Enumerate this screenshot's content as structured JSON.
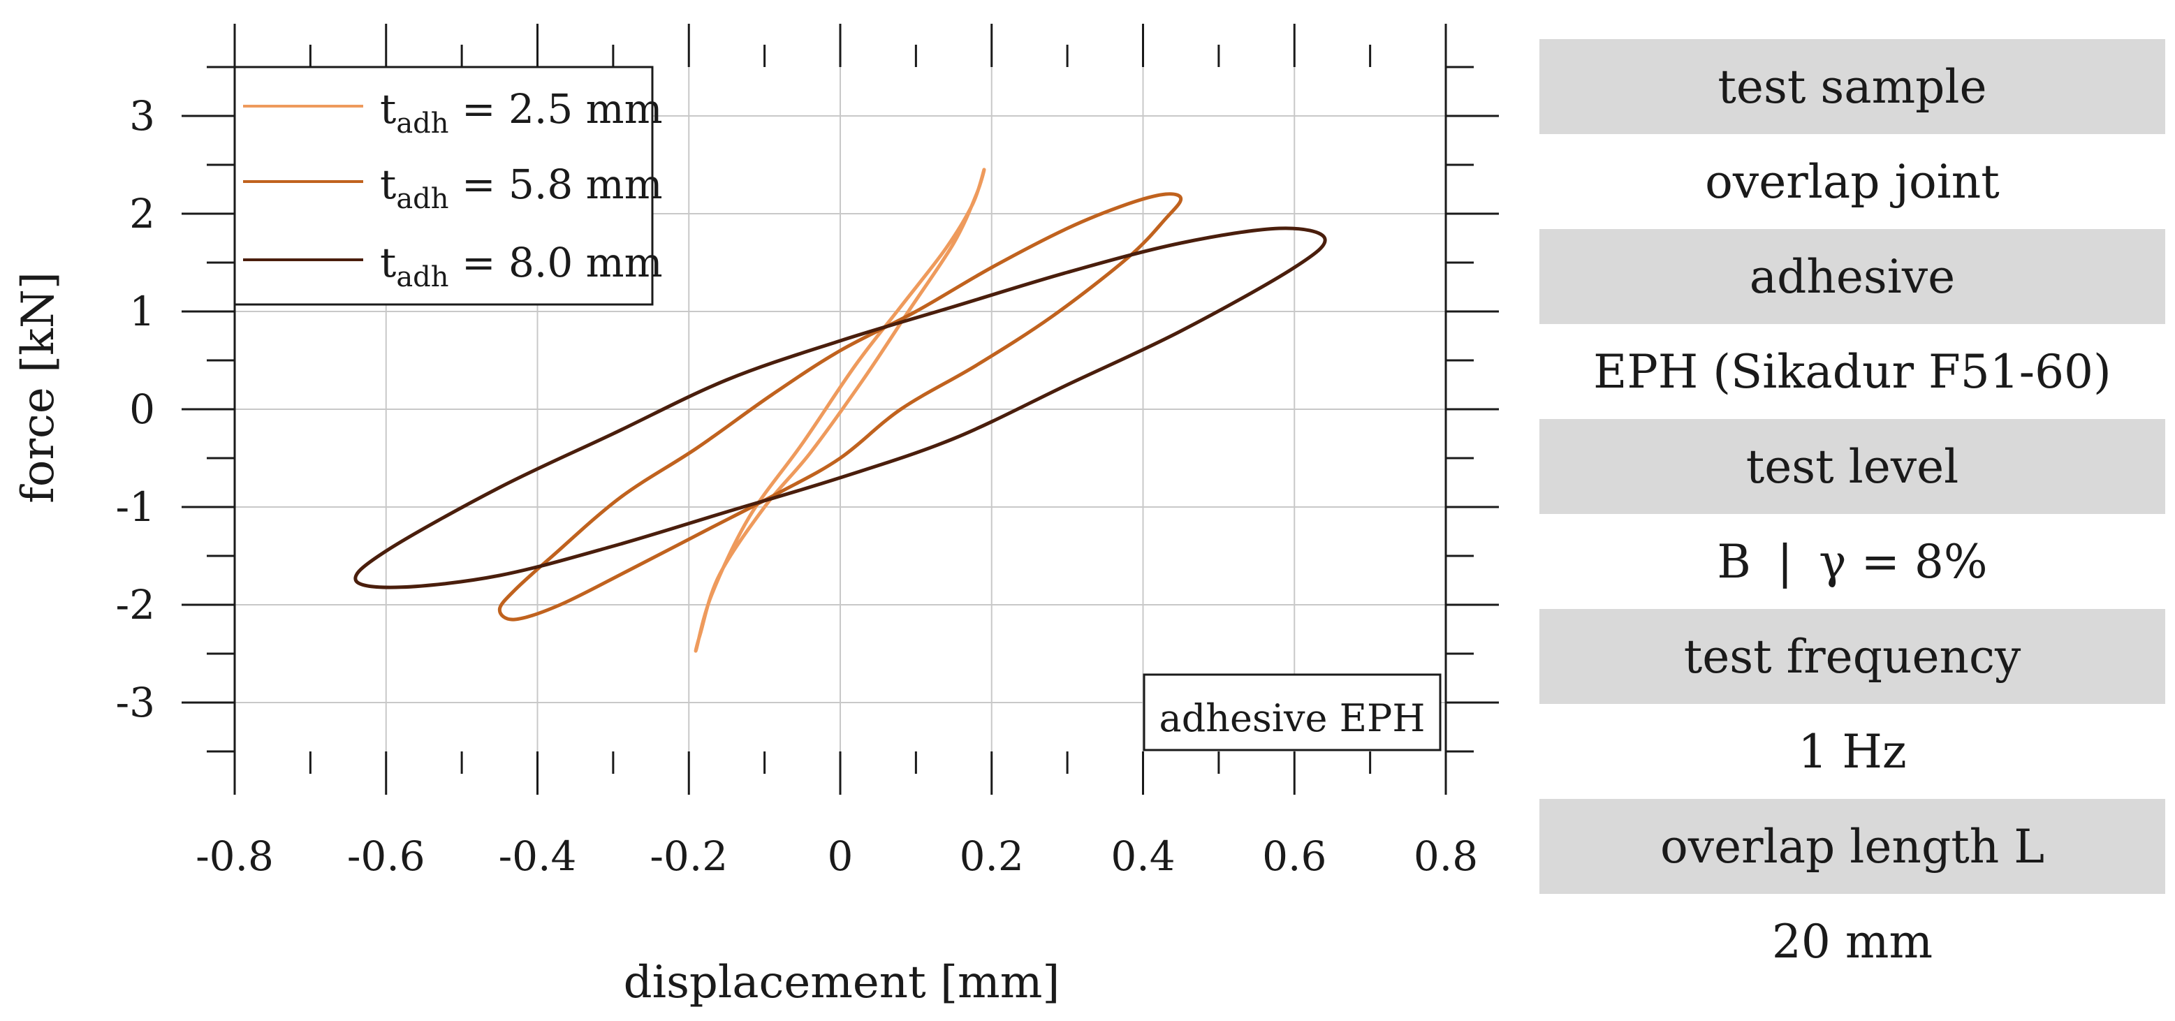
{
  "chart_data": {
    "type": "line",
    "xlabel": "displacement [mm]",
    "ylabel": "force [kN]",
    "xlim": [
      -0.8,
      0.8
    ],
    "ylim": [
      -3.5,
      3.5
    ],
    "xticks": [
      -0.8,
      -0.6,
      -0.4,
      -0.2,
      0,
      0.2,
      0.4,
      0.6,
      0.8
    ],
    "xtick_labels": [
      "-0.8",
      "-0.6",
      "-0.4",
      "-0.2",
      "0",
      "0.2",
      "0.4",
      "0.6",
      "0.8"
    ],
    "yticks": [
      -3,
      -2,
      -1,
      0,
      1,
      2,
      3
    ],
    "ytick_labels": [
      "-3",
      "-2",
      "-1",
      "0",
      "1",
      "2",
      "3"
    ],
    "grid": true,
    "legend_position": "top-left",
    "annotation": "adhesive EPH",
    "series": [
      {
        "name": "t_adh = 2.5 mm",
        "legend_main": "t",
        "legend_sub": "adh",
        "legend_value": " = 2.5 mm",
        "color": "#ee9a5c",
        "x": [
          0.19,
          0.175,
          0.14,
          0.08,
          0.02,
          -0.05,
          -0.12,
          -0.17,
          -0.19,
          -0.185,
          -0.16,
          -0.1,
          -0.04,
          0.03,
          0.09,
          0.15,
          0.18,
          0.19
        ],
        "y": [
          2.45,
          2.1,
          1.65,
          1.05,
          0.45,
          -0.35,
          -1.1,
          -1.9,
          -2.45,
          -2.3,
          -1.7,
          -1.0,
          -0.45,
          0.3,
          1.0,
          1.7,
          2.2,
          2.45
        ]
      },
      {
        "name": "t_adh = 5.8 mm",
        "legend_main": "t",
        "legend_sub": "adh",
        "legend_value": " = 5.8 mm",
        "color": "#c0621e",
        "x": [
          0.45,
          0.43,
          0.38,
          0.28,
          0.18,
          0.08,
          0.0,
          -0.08,
          -0.18,
          -0.28,
          -0.37,
          -0.43,
          -0.45,
          -0.43,
          -0.38,
          -0.29,
          -0.19,
          -0.09,
          0.0,
          0.1,
          0.2,
          0.3,
          0.38,
          0.43,
          0.45
        ],
        "y": [
          2.15,
          1.95,
          1.55,
          0.95,
          0.45,
          0.0,
          -0.5,
          -0.85,
          -1.25,
          -1.65,
          -2.0,
          -2.15,
          -2.05,
          -1.85,
          -1.5,
          -0.9,
          -0.4,
          0.15,
          0.6,
          1.0,
          1.45,
          1.85,
          2.1,
          2.2,
          2.15
        ]
      },
      {
        "name": "t_adh = 8.0 mm",
        "legend_main": "t",
        "legend_sub": "adh",
        "legend_value": " = 8.0 mm",
        "color": "#4a1e0c",
        "x": [
          0.64,
          0.6,
          0.45,
          0.3,
          0.15,
          0.0,
          -0.15,
          -0.3,
          -0.45,
          -0.58,
          -0.64,
          -0.6,
          -0.45,
          -0.3,
          -0.15,
          0.0,
          0.15,
          0.3,
          0.45,
          0.58,
          0.64
        ],
        "y": [
          1.75,
          1.45,
          0.8,
          0.25,
          -0.3,
          -0.7,
          -1.05,
          -1.4,
          -1.7,
          -1.82,
          -1.75,
          -1.45,
          -0.8,
          -0.25,
          0.3,
          0.7,
          1.05,
          1.4,
          1.7,
          1.85,
          1.75
        ]
      }
    ]
  },
  "info_table": [
    {
      "label": "test sample",
      "shaded": true
    },
    {
      "label": "overlap joint",
      "shaded": false
    },
    {
      "label": "adhesive",
      "shaded": true
    },
    {
      "label": "EPH (Sikadur F51-60)",
      "shaded": false
    },
    {
      "label": "test level",
      "shaded": true
    },
    {
      "label": "B ❘ γ = 8%",
      "shaded": false
    },
    {
      "label": "test frequency",
      "shaded": true
    },
    {
      "label": "1 Hz",
      "shaded": false
    },
    {
      "label": "overlap length L",
      "shaded": true
    },
    {
      "label": "20 mm",
      "shaded": false
    }
  ]
}
